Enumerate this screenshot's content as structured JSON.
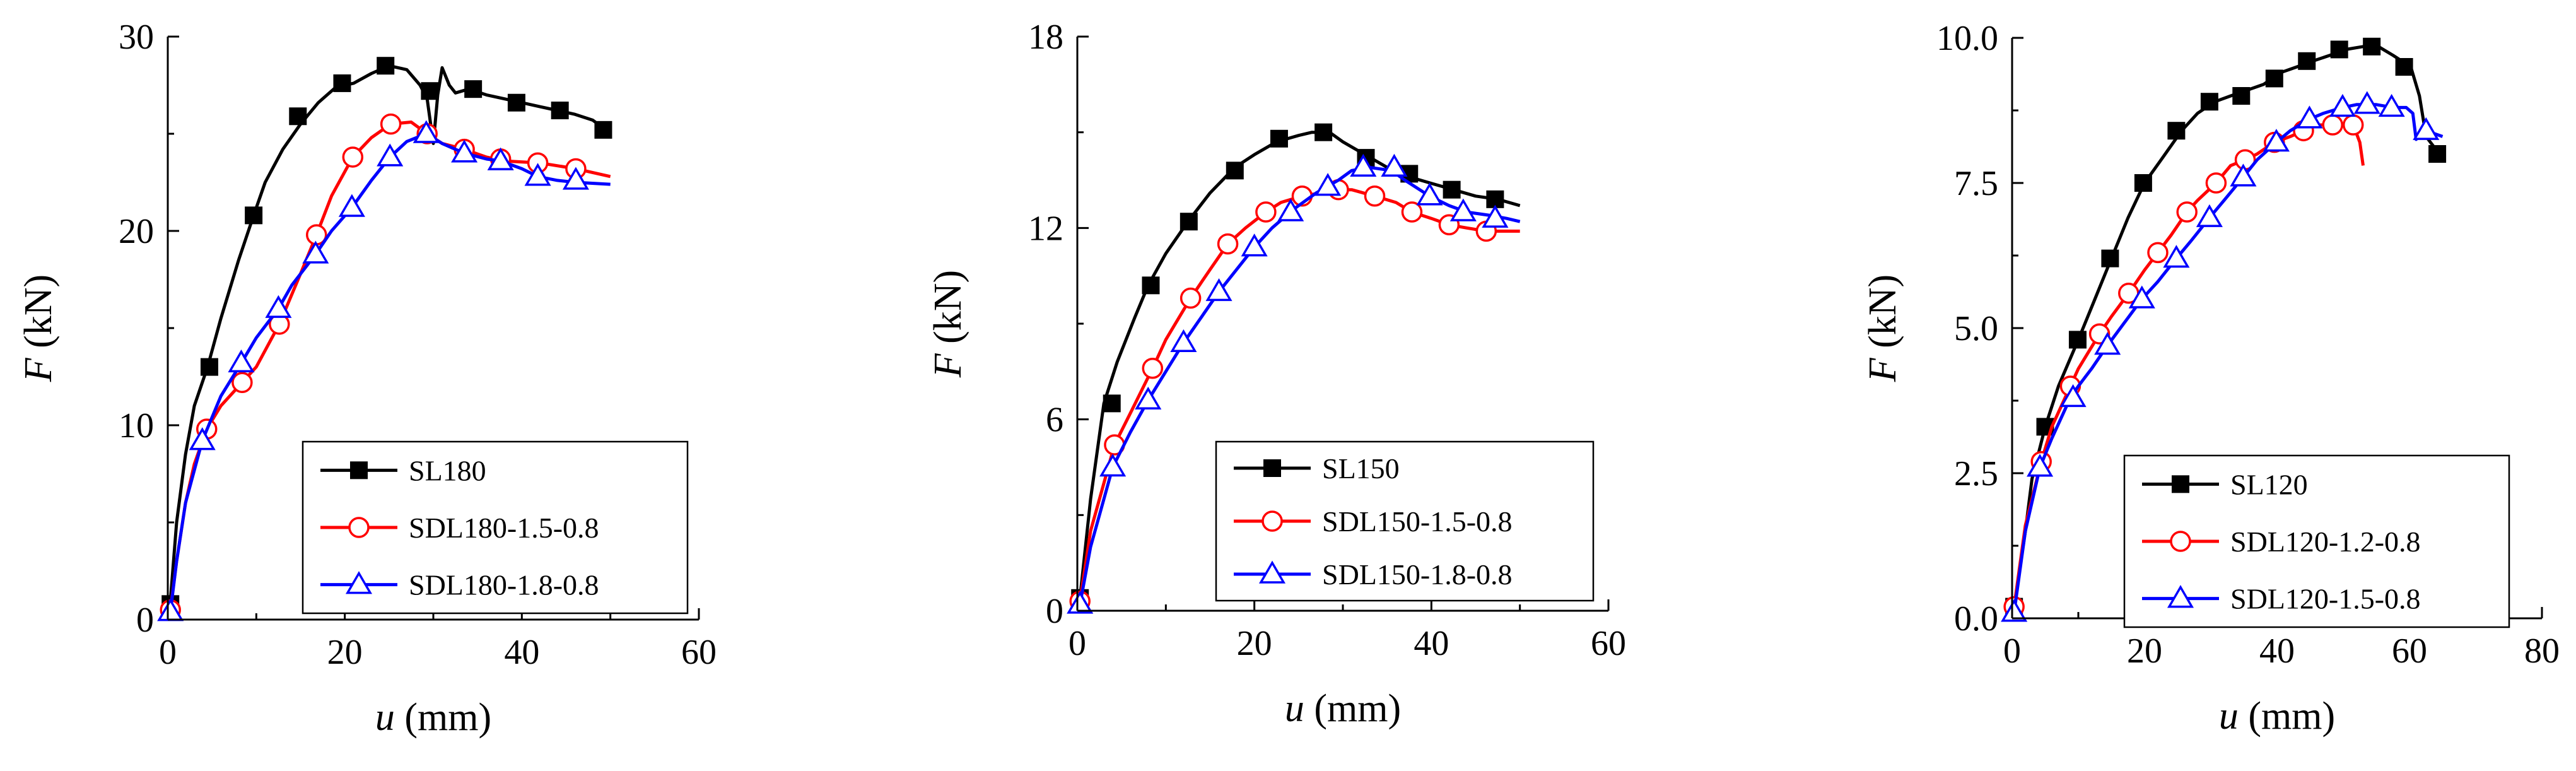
{
  "chart_data": [
    {
      "type": "line",
      "xlabel_var": "u",
      "xlabel_unit": " (mm)",
      "ylabel_var": "F",
      "ylabel_unit": " (kN)",
      "xlim": [
        0,
        60
      ],
      "ylim": [
        0,
        30
      ],
      "xticks": [
        0,
        20,
        40,
        60
      ],
      "yticks": [
        0,
        10,
        20,
        30
      ],
      "legend_position": "bottom-right",
      "series": [
        {
          "name": "SL180",
          "color": "#000000",
          "marker": "filled-square",
          "x": [
            0,
            0.3,
            1,
            2,
            3,
            4.5,
            6,
            8,
            9.7,
            11,
            13,
            15,
            17,
            19,
            21,
            23,
            25,
            27,
            28.5,
            29.3,
            30,
            30.5,
            31,
            31.8,
            32.5,
            34,
            36,
            38,
            40,
            42,
            44,
            46,
            48,
            49.2,
            50
          ],
          "y": [
            0,
            1,
            5,
            8.5,
            11,
            13,
            15.5,
            18.5,
            20.8,
            22.5,
            24.2,
            25.5,
            26.6,
            27.4,
            27.6,
            28.1,
            28.5,
            28.3,
            27.5,
            26.8,
            24.5,
            27,
            28.4,
            27.5,
            27.1,
            27.3,
            27.0,
            26.8,
            26.6,
            26.4,
            26.2,
            26.0,
            25.7,
            25.3,
            25.0
          ],
          "marker_x": [
            0.3,
            4.7,
            9.7,
            14.7,
            19.7,
            24.6,
            29.6,
            34.5,
            39.4,
            44.3,
            49.2
          ],
          "marker_y": [
            0.8,
            13.0,
            20.8,
            25.9,
            27.6,
            28.5,
            27.2,
            27.3,
            26.6,
            26.2,
            25.2
          ]
        },
        {
          "name": "SDL180-1.5-0.8",
          "color": "#ff0000",
          "marker": "open-circle",
          "x": [
            0,
            0.3,
            1,
            2,
            3,
            4.4,
            6,
            8.4,
            10,
            12.6,
            15,
            16.8,
            18.5,
            20.9,
            23,
            25.2,
            27.5,
            29.3,
            31,
            33.5,
            36,
            38,
            42,
            46.1,
            50
          ],
          "y": [
            0,
            0.5,
            3,
            6,
            8,
            9.8,
            11,
            12.2,
            13.0,
            15.2,
            17.8,
            19.8,
            21.8,
            23.8,
            24.8,
            25.5,
            25.6,
            25.0,
            24.5,
            24.2,
            23.8,
            23.6,
            23.5,
            23.2,
            22.8
          ],
          "marker_x": [
            0.3,
            4.4,
            8.4,
            12.6,
            16.8,
            20.9,
            25.2,
            29.3,
            33.5,
            37.6,
            41.8,
            46.1
          ],
          "marker_y": [
            0.5,
            9.8,
            12.2,
            15.2,
            19.8,
            23.8,
            25.5,
            25.0,
            24.2,
            23.7,
            23.5,
            23.2
          ]
        },
        {
          "name": "SDL180-1.8-0.8",
          "color": "#0000ff",
          "marker": "open-triangle",
          "x": [
            0,
            0.3,
            1,
            2,
            3.9,
            6,
            8.3,
            10,
            12.5,
            14,
            16.7,
            18.5,
            20.8,
            23,
            25.1,
            27,
            29.2,
            31,
            33.5,
            36,
            37.6,
            40,
            41.8,
            44,
            46.1,
            50
          ],
          "y": [
            0,
            0.4,
            3,
            6,
            9.2,
            11.5,
            13.2,
            14.5,
            16.0,
            17.2,
            18.8,
            20,
            21.2,
            22.6,
            23.8,
            24.6,
            25.0,
            24.5,
            24.0,
            23.7,
            23.6,
            23.2,
            22.8,
            22.6,
            22.5,
            22.4
          ],
          "marker_x": [
            0.3,
            3.9,
            8.3,
            12.5,
            16.7,
            20.8,
            25.1,
            29.2,
            33.5,
            37.6,
            41.8,
            46.1
          ],
          "marker_y": [
            0.4,
            9.2,
            13.2,
            16.0,
            18.8,
            21.2,
            23.8,
            25.0,
            24.0,
            23.6,
            22.8,
            22.6
          ]
        }
      ]
    },
    {
      "type": "line",
      "xlabel_var": "u",
      "xlabel_unit": " (mm)",
      "ylabel_var": "F",
      "ylabel_unit": " (kN)",
      "xlim": [
        0,
        60
      ],
      "ylim": [
        0,
        18
      ],
      "xticks": [
        0,
        20,
        40,
        60
      ],
      "yticks": [
        0,
        6,
        12,
        18
      ],
      "legend_position": "bottom-right",
      "series": [
        {
          "name": "SL150",
          "color": "#000000",
          "marker": "filled-square",
          "x": [
            0,
            0.3,
            1.5,
            3,
            4.5,
            6.5,
            8,
            10,
            12.5,
            15,
            17.8,
            20,
            22.5,
            25,
            26.5,
            28.5,
            30,
            32.5,
            35,
            37.5,
            40,
            42.5,
            45,
            47.5,
            50
          ],
          "y": [
            0,
            0.4,
            3.5,
            6.5,
            7.8,
            9.2,
            10.2,
            11.2,
            12.2,
            13.1,
            13.9,
            14.3,
            14.7,
            14.9,
            15.0,
            15.0,
            14.7,
            14.3,
            13.9,
            13.6,
            13.4,
            13.2,
            13.0,
            12.9,
            12.7
          ],
          "marker_x": [
            0.3,
            3.9,
            8.3,
            12.6,
            17.8,
            22.8,
            27.8,
            32.6,
            37.5,
            42.3,
            47.2
          ],
          "marker_y": [
            0.4,
            6.5,
            10.2,
            12.2,
            13.8,
            14.8,
            15.0,
            14.2,
            13.7,
            13.2,
            12.9
          ]
        },
        {
          "name": "SDL150-1.5-0.8",
          "color": "#ff0000",
          "marker": "open-circle",
          "x": [
            0,
            0.3,
            1.5,
            3,
            4.2,
            6,
            8.5,
            10,
            12.8,
            15,
            17,
            19,
            21.3,
            23,
            25.4,
            27.5,
            29.5,
            31,
            33.6,
            36,
            37.8,
            40,
            42,
            44,
            46.2,
            48,
            50
          ],
          "y": [
            0,
            0.3,
            2.5,
            4,
            5.2,
            6.2,
            7.6,
            8.5,
            9.8,
            10.7,
            11.5,
            12.0,
            12.5,
            12.8,
            13.0,
            13.1,
            13.2,
            13.2,
            13.0,
            12.8,
            12.5,
            12.3,
            12.1,
            12.0,
            11.9,
            11.9,
            11.9
          ],
          "marker_x": [
            0.3,
            4.2,
            8.5,
            12.8,
            17.0,
            21.3,
            25.4,
            29.5,
            33.6,
            37.8,
            42.0,
            46.2
          ],
          "marker_y": [
            0.3,
            5.2,
            7.6,
            9.8,
            11.5,
            12.5,
            13.0,
            13.2,
            13.0,
            12.5,
            12.1,
            11.9
          ]
        },
        {
          "name": "SDL150-1.8-0.8",
          "color": "#0000ff",
          "marker": "open-triangle",
          "x": [
            0,
            0.3,
            1.5,
            3,
            4,
            6,
            8,
            10,
            12,
            14,
            16,
            18,
            20,
            22,
            24.5,
            27,
            29.5,
            31,
            33,
            35.5,
            37,
            39.8,
            42,
            44,
            46.5,
            48.5,
            50
          ],
          "y": [
            0,
            0.2,
            2,
            3.5,
            4.5,
            5.6,
            6.6,
            7.5,
            8.4,
            9.2,
            10.0,
            10.7,
            11.4,
            12.0,
            12.6,
            13.1,
            13.5,
            13.8,
            13.9,
            13.8,
            13.5,
            13.0,
            12.7,
            12.5,
            12.4,
            12.3,
            12.2
          ],
          "marker_x": [
            0.3,
            4.0,
            8.0,
            12.0,
            16.0,
            20.0,
            24.1,
            28.3,
            32.3,
            35.8,
            39.8,
            43.6,
            47.2
          ],
          "marker_y": [
            0.2,
            4.5,
            6.6,
            8.4,
            10.0,
            11.4,
            12.5,
            13.3,
            13.9,
            13.9,
            13.0,
            12.5,
            12.3
          ]
        }
      ]
    },
    {
      "type": "line",
      "xlabel_var": "u",
      "xlabel_unit": " (mm)",
      "ylabel_var": "F",
      "ylabel_unit": " (kN)",
      "xlim": [
        0,
        80
      ],
      "ylim": [
        0,
        10
      ],
      "xticks": [
        0,
        20,
        40,
        60,
        80
      ],
      "yticks": [
        0.0,
        2.5,
        5.0,
        7.5,
        10.0
      ],
      "ytick_labels": [
        "0.0",
        "2.5",
        "5.0",
        "7.5",
        "10.0"
      ],
      "legend_position": "bottom-right",
      "series": [
        {
          "name": "SL120",
          "color": "#000000",
          "marker": "filled-square",
          "x": [
            0,
            0.3,
            2,
            3,
            5,
            7,
            10,
            12.5,
            15,
            17.5,
            20,
            22.5,
            25.6,
            28,
            30.6,
            33,
            35.5,
            38,
            40.5,
            43,
            45.4,
            48,
            50.4,
            53,
            55.3,
            57.5,
            60.2,
            61.5,
            62.5,
            64.5
          ],
          "y": [
            0,
            0.2,
            1.5,
            2.4,
            3.3,
            4.0,
            4.8,
            5.5,
            6.2,
            6.9,
            7.5,
            7.9,
            8.4,
            8.7,
            8.9,
            9.0,
            9.1,
            9.2,
            9.4,
            9.5,
            9.6,
            9.7,
            9.8,
            9.85,
            9.85,
            9.7,
            9.5,
            9.0,
            8.3,
            8.0
          ],
          "marker_x": [
            0.3,
            5.0,
            9.9,
            14.8,
            19.8,
            24.8,
            29.8,
            34.6,
            39.6,
            44.5,
            49.4,
            54.3,
            59.2,
            64.2
          ],
          "marker_y": [
            0.2,
            3.3,
            4.8,
            6.2,
            7.5,
            8.4,
            8.9,
            9.0,
            9.3,
            9.6,
            9.8,
            9.85,
            9.5,
            8.0
          ]
        },
        {
          "name": "SDL120-1.2-0.8",
          "color": "#ff0000",
          "marker": "open-circle",
          "x": [
            0,
            0.3,
            2,
            4.4,
            6,
            8.8,
            10,
            13.2,
            15,
            17.6,
            20,
            22,
            24,
            26.4,
            28,
            30.8,
            33,
            35.2,
            37,
            39.6,
            42,
            44,
            46,
            48.4,
            50,
            51.5,
            52.5,
            53
          ],
          "y": [
            0,
            0.2,
            1.6,
            2.7,
            3.3,
            4.0,
            4.3,
            4.9,
            5.2,
            5.6,
            6.0,
            6.3,
            6.6,
            7.0,
            7.2,
            7.5,
            7.8,
            7.9,
            8.0,
            8.2,
            8.3,
            8.4,
            8.5,
            8.5,
            8.5,
            8.5,
            8.2,
            7.8
          ],
          "marker_x": [
            0.3,
            4.4,
            8.8,
            13.2,
            17.6,
            22.0,
            26.4,
            30.8,
            35.2,
            39.6,
            44.0,
            48.4,
            51.5
          ],
          "marker_y": [
            0.2,
            2.7,
            4.0,
            4.9,
            5.6,
            6.3,
            7.0,
            7.5,
            7.9,
            8.2,
            8.4,
            8.5,
            8.5
          ]
        },
        {
          "name": "SDL120-1.5-0.8",
          "color": "#0000ff",
          "marker": "open-triangle",
          "x": [
            0,
            0.3,
            2,
            4.2,
            6,
            8.8,
            10,
            12,
            14.4,
            17,
            19.6,
            22,
            24.8,
            27,
            29.8,
            32,
            34.9,
            37,
            39.9,
            42,
            44.9,
            47,
            49.9,
            52,
            55,
            57.5,
            59.5,
            60.5,
            61,
            62.5,
            65
          ],
          "y": [
            0,
            0.1,
            1.5,
            2.6,
            3.1,
            3.8,
            4.0,
            4.3,
            4.7,
            5.1,
            5.5,
            5.8,
            6.2,
            6.5,
            6.9,
            7.2,
            7.6,
            7.9,
            8.2,
            8.4,
            8.6,
            8.7,
            8.8,
            8.85,
            8.85,
            8.8,
            8.8,
            8.7,
            8.25,
            8.4,
            8.3
          ],
          "marker_x": [
            0.3,
            4.2,
            9.2,
            14.4,
            19.6,
            24.8,
            29.8,
            34.9,
            39.9,
            44.9,
            49.9,
            53.6,
            57.3,
            62.5
          ],
          "marker_y": [
            0.1,
            2.6,
            3.8,
            4.7,
            5.5,
            6.2,
            6.9,
            7.6,
            8.2,
            8.6,
            8.8,
            8.85,
            8.8,
            8.4
          ]
        }
      ]
    }
  ]
}
